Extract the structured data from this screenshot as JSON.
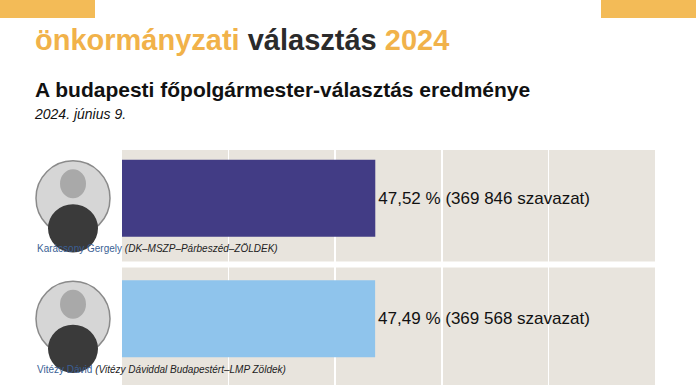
{
  "supertitle": [
    "önkormányzati",
    "választás",
    "2024"
  ],
  "chart_data": {
    "type": "bar",
    "orientation": "horizontal",
    "title": "A budapesti főpolgármester-választás eredménye",
    "subtitle": "2024. június 9.",
    "categories": [
      "Karácsony Gergely",
      "Vitézy Dávid"
    ],
    "parties": [
      "(DK–MSZP–Párbeszéd–ZÖLDEK)",
      "(Vitézy Dáviddal Budapestért–LMP Zöldek)"
    ],
    "values": [
      47.52,
      47.49
    ],
    "value_labels": [
      "47,52 % (369 846 szavazat)",
      "47,49 % (369 568 szavazat)"
    ],
    "colors": [
      "#423c85",
      "#8fc4ec"
    ],
    "xlim": [
      0,
      100
    ],
    "xticks": [
      0,
      20,
      40,
      60,
      80,
      100
    ],
    "grid": true,
    "data_labels": true,
    "tick_labels": false
  }
}
